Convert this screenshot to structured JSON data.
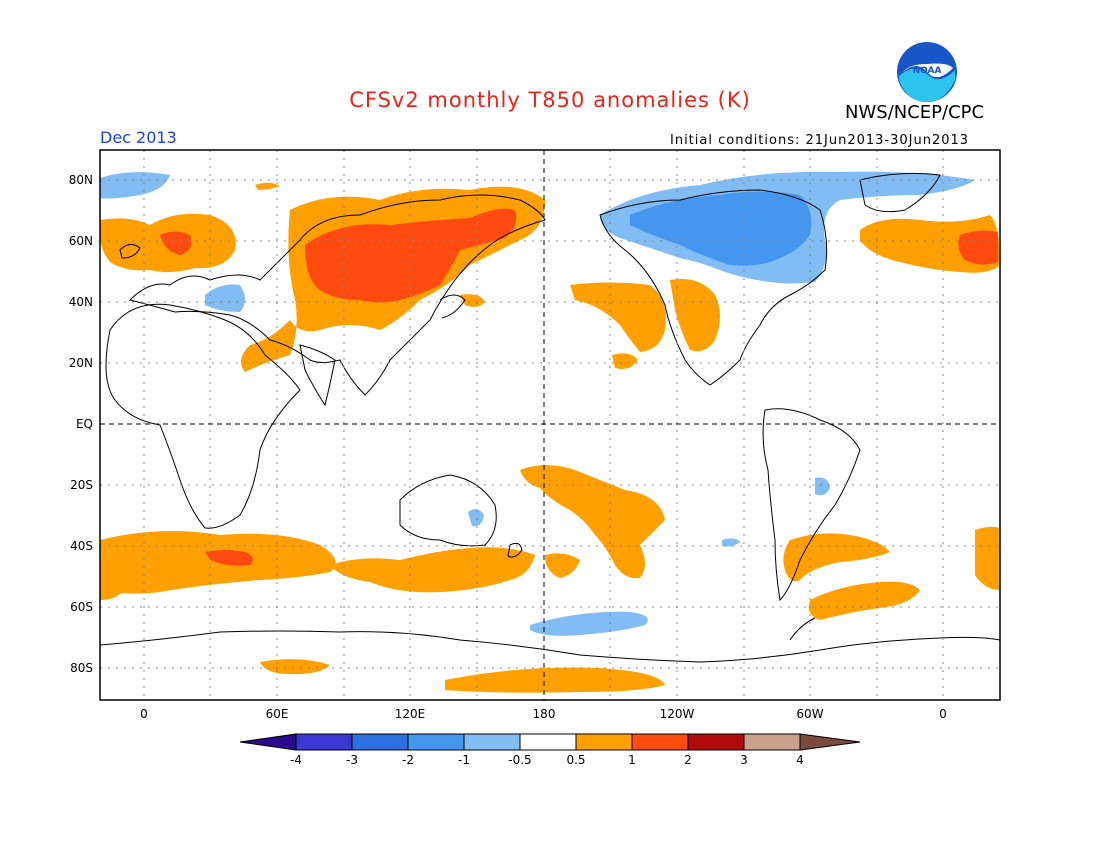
{
  "header": {
    "title": "CFSv2 monthly T850 anomalies (K)",
    "agency": "NWS/NCEP/CPC",
    "period": "Dec 2013",
    "initial_conditions": "Initial conditions: 21Jun2013-30Jun2013",
    "logo_text": "NOAA"
  },
  "axes": {
    "lat_labels": [
      "80N",
      "60N",
      "40N",
      "20N",
      "EQ",
      "20S",
      "40S",
      "60S",
      "80S"
    ],
    "lon_labels": [
      "0",
      "60E",
      "120E",
      "180",
      "120W",
      "60W",
      "0"
    ]
  },
  "colorbar": {
    "labels": [
      "-4",
      "-3",
      "-2",
      "-1",
      "-0.5",
      "0.5",
      "1",
      "2",
      "3",
      "4"
    ],
    "colors": [
      "#2a0a8c",
      "#3a3ad2",
      "#2b6fe0",
      "#4496ee",
      "#82bcf4",
      "#ffffff",
      "#ffa000",
      "#ff4b10",
      "#b00a0a",
      "#c8a08c",
      "#7a4a3a"
    ]
  },
  "anomaly_colors": {
    "warm_1": "#ffa000",
    "warm_2": "#ff4b10",
    "cool_1": "#82bcf4",
    "cool_2": "#4496ee"
  }
}
